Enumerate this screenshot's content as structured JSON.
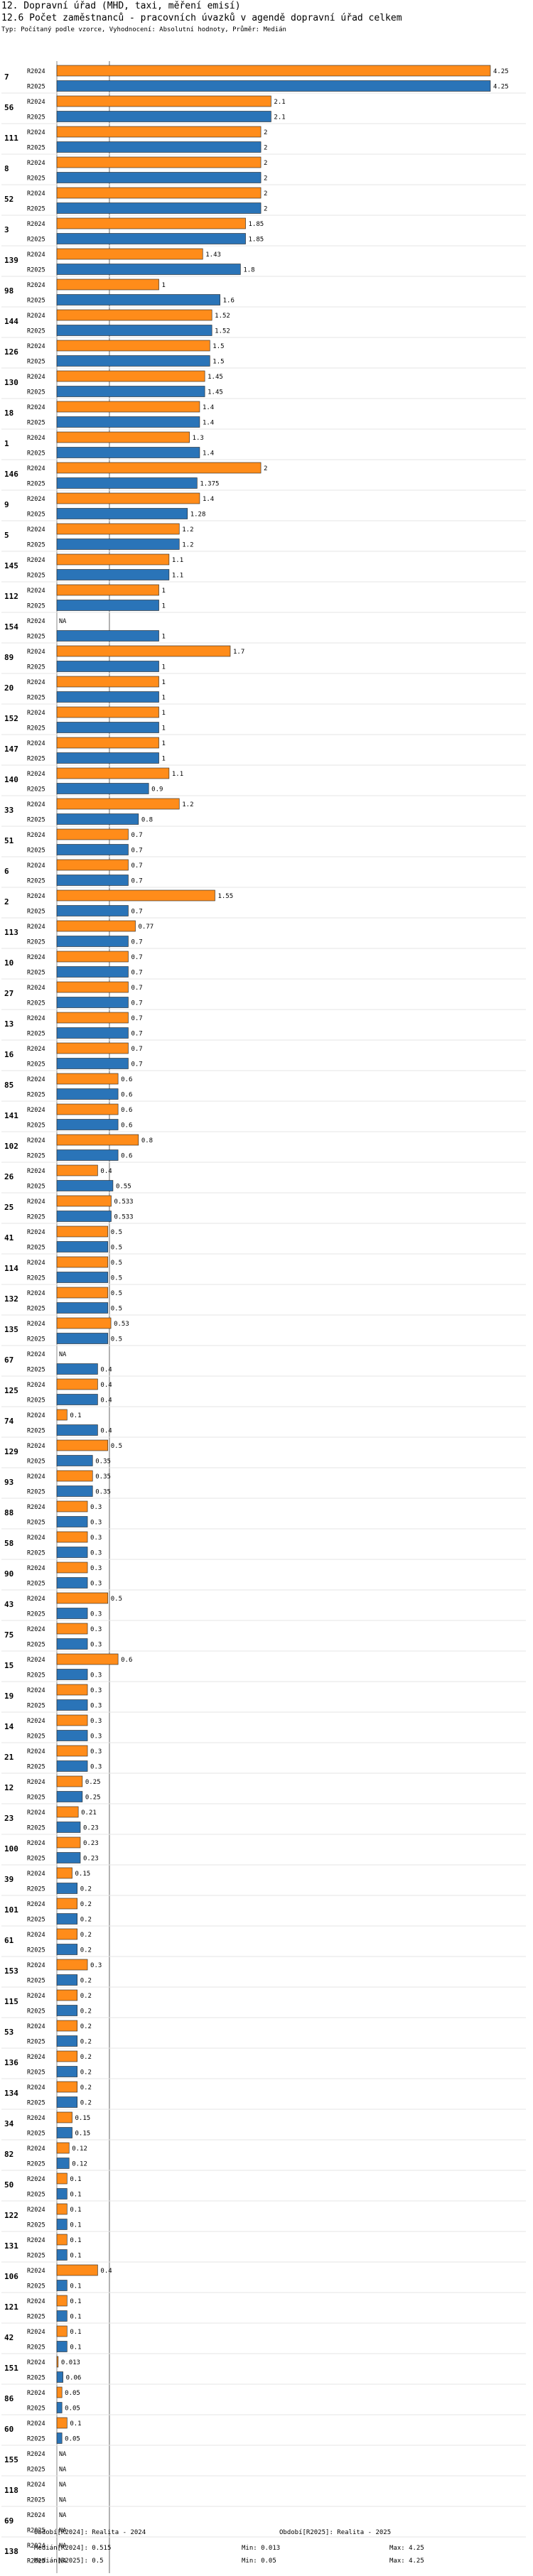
{
  "header": {
    "title": "12. Dopravní úřad (MHD, taxi, měření emisí)",
    "subtitle": "12.6 Počet zaměstnanců - pracovních úvazků v agendě dopravní úřad celkem",
    "meta": "Typ: Počítaný podle vzorce, Vyhodnocení: Absolutní hodnoty, Průměr: Medián"
  },
  "colors": {
    "r2024": "#ff8c1a",
    "r2025": "#2a74b8",
    "median_line": "#999999"
  },
  "chart_data": {
    "type": "bar",
    "orientation": "horizontal",
    "series": [
      {
        "name": "R2024",
        "values": [
          4.25,
          2.1,
          2,
          2,
          2,
          1.85,
          1.43,
          1,
          1.52,
          1.5,
          1.45,
          1.4,
          1.3,
          2,
          1.4,
          1.2,
          1.1,
          1,
          null,
          1.7,
          1,
          1,
          1,
          1.1,
          1.2,
          0.7,
          0.7,
          1.55,
          0.77,
          0.7,
          0.7,
          0.7,
          0.7,
          0.6,
          0.6,
          0.8,
          0.4,
          0.533,
          0.5,
          0.5,
          0.5,
          0.53,
          null,
          0.4,
          0.1,
          0.5,
          0.35,
          0.3,
          0.3,
          0.3,
          0.5,
          0.3,
          0.6,
          0.3,
          0.3,
          0.3,
          0.25,
          0.21,
          0.23,
          0.15,
          0.2,
          0.2,
          0.3,
          0.2,
          0.2,
          0.2,
          0.2,
          0.15,
          0.12,
          0.1,
          0.1,
          0.1,
          0.4,
          0.1,
          0.1,
          0.013,
          0.05,
          0.1,
          null,
          null,
          null,
          null
        ]
      },
      {
        "name": "R2025",
        "values": [
          4.25,
          2.1,
          2,
          2,
          2,
          1.85,
          1.8,
          1.6,
          1.52,
          1.5,
          1.45,
          1.4,
          1.4,
          1.375,
          1.28,
          1.2,
          1.1,
          1,
          1,
          1,
          1,
          1,
          1,
          0.9,
          0.8,
          0.7,
          0.7,
          0.7,
          0.7,
          0.7,
          0.7,
          0.7,
          0.7,
          0.6,
          0.6,
          0.6,
          0.55,
          0.533,
          0.5,
          0.5,
          0.5,
          0.5,
          0.4,
          0.4,
          0.4,
          0.35,
          0.35,
          0.3,
          0.3,
          0.3,
          0.3,
          0.3,
          0.3,
          0.3,
          0.3,
          0.3,
          0.25,
          0.23,
          0.23,
          0.2,
          0.2,
          0.2,
          0.2,
          0.2,
          0.2,
          0.2,
          0.2,
          0.15,
          0.12,
          0.1,
          0.1,
          0.1,
          0.1,
          0.1,
          0.1,
          0.06,
          0.05,
          0.05,
          null,
          null,
          null,
          null
        ]
      }
    ],
    "categories": [
      "7",
      "56",
      "111",
      "8",
      "52",
      "3",
      "139",
      "98",
      "144",
      "126",
      "130",
      "18",
      "1",
      "146",
      "9",
      "5",
      "145",
      "112",
      "154",
      "89",
      "20",
      "152",
      "147",
      "140",
      "33",
      "51",
      "6",
      "2",
      "113",
      "10",
      "27",
      "13",
      "16",
      "85",
      "141",
      "102",
      "26",
      "25",
      "41",
      "114",
      "132",
      "135",
      "67",
      "125",
      "74",
      "129",
      "93",
      "88",
      "58",
      "90",
      "43",
      "75",
      "15",
      "19",
      "14",
      "21",
      "12",
      "23",
      "100",
      "39",
      "101",
      "61",
      "153",
      "115",
      "53",
      "136",
      "134",
      "34",
      "82",
      "50",
      "122",
      "131",
      "106",
      "121",
      "42",
      "151",
      "86",
      "60",
      "155",
      "118",
      "69",
      "138"
    ],
    "row_labels": [
      "R2024",
      "R2025"
    ],
    "na_label": "NA",
    "xlim": [
      0,
      4.25
    ],
    "median_2024": 0.515,
    "median_2025": 0.5
  },
  "footer": {
    "col1": [
      "Období[R2024]: Realita - 2024",
      "Medián[R2024]: 0.515",
      "Medián[R2025]: 0.5"
    ],
    "col2": [
      "Min: 0.013",
      "Min: 0.05"
    ],
    "col3": [
      "Období[R2025]: Realita - 2025",
      "Max: 4.25",
      "Max: 4.25"
    ]
  }
}
